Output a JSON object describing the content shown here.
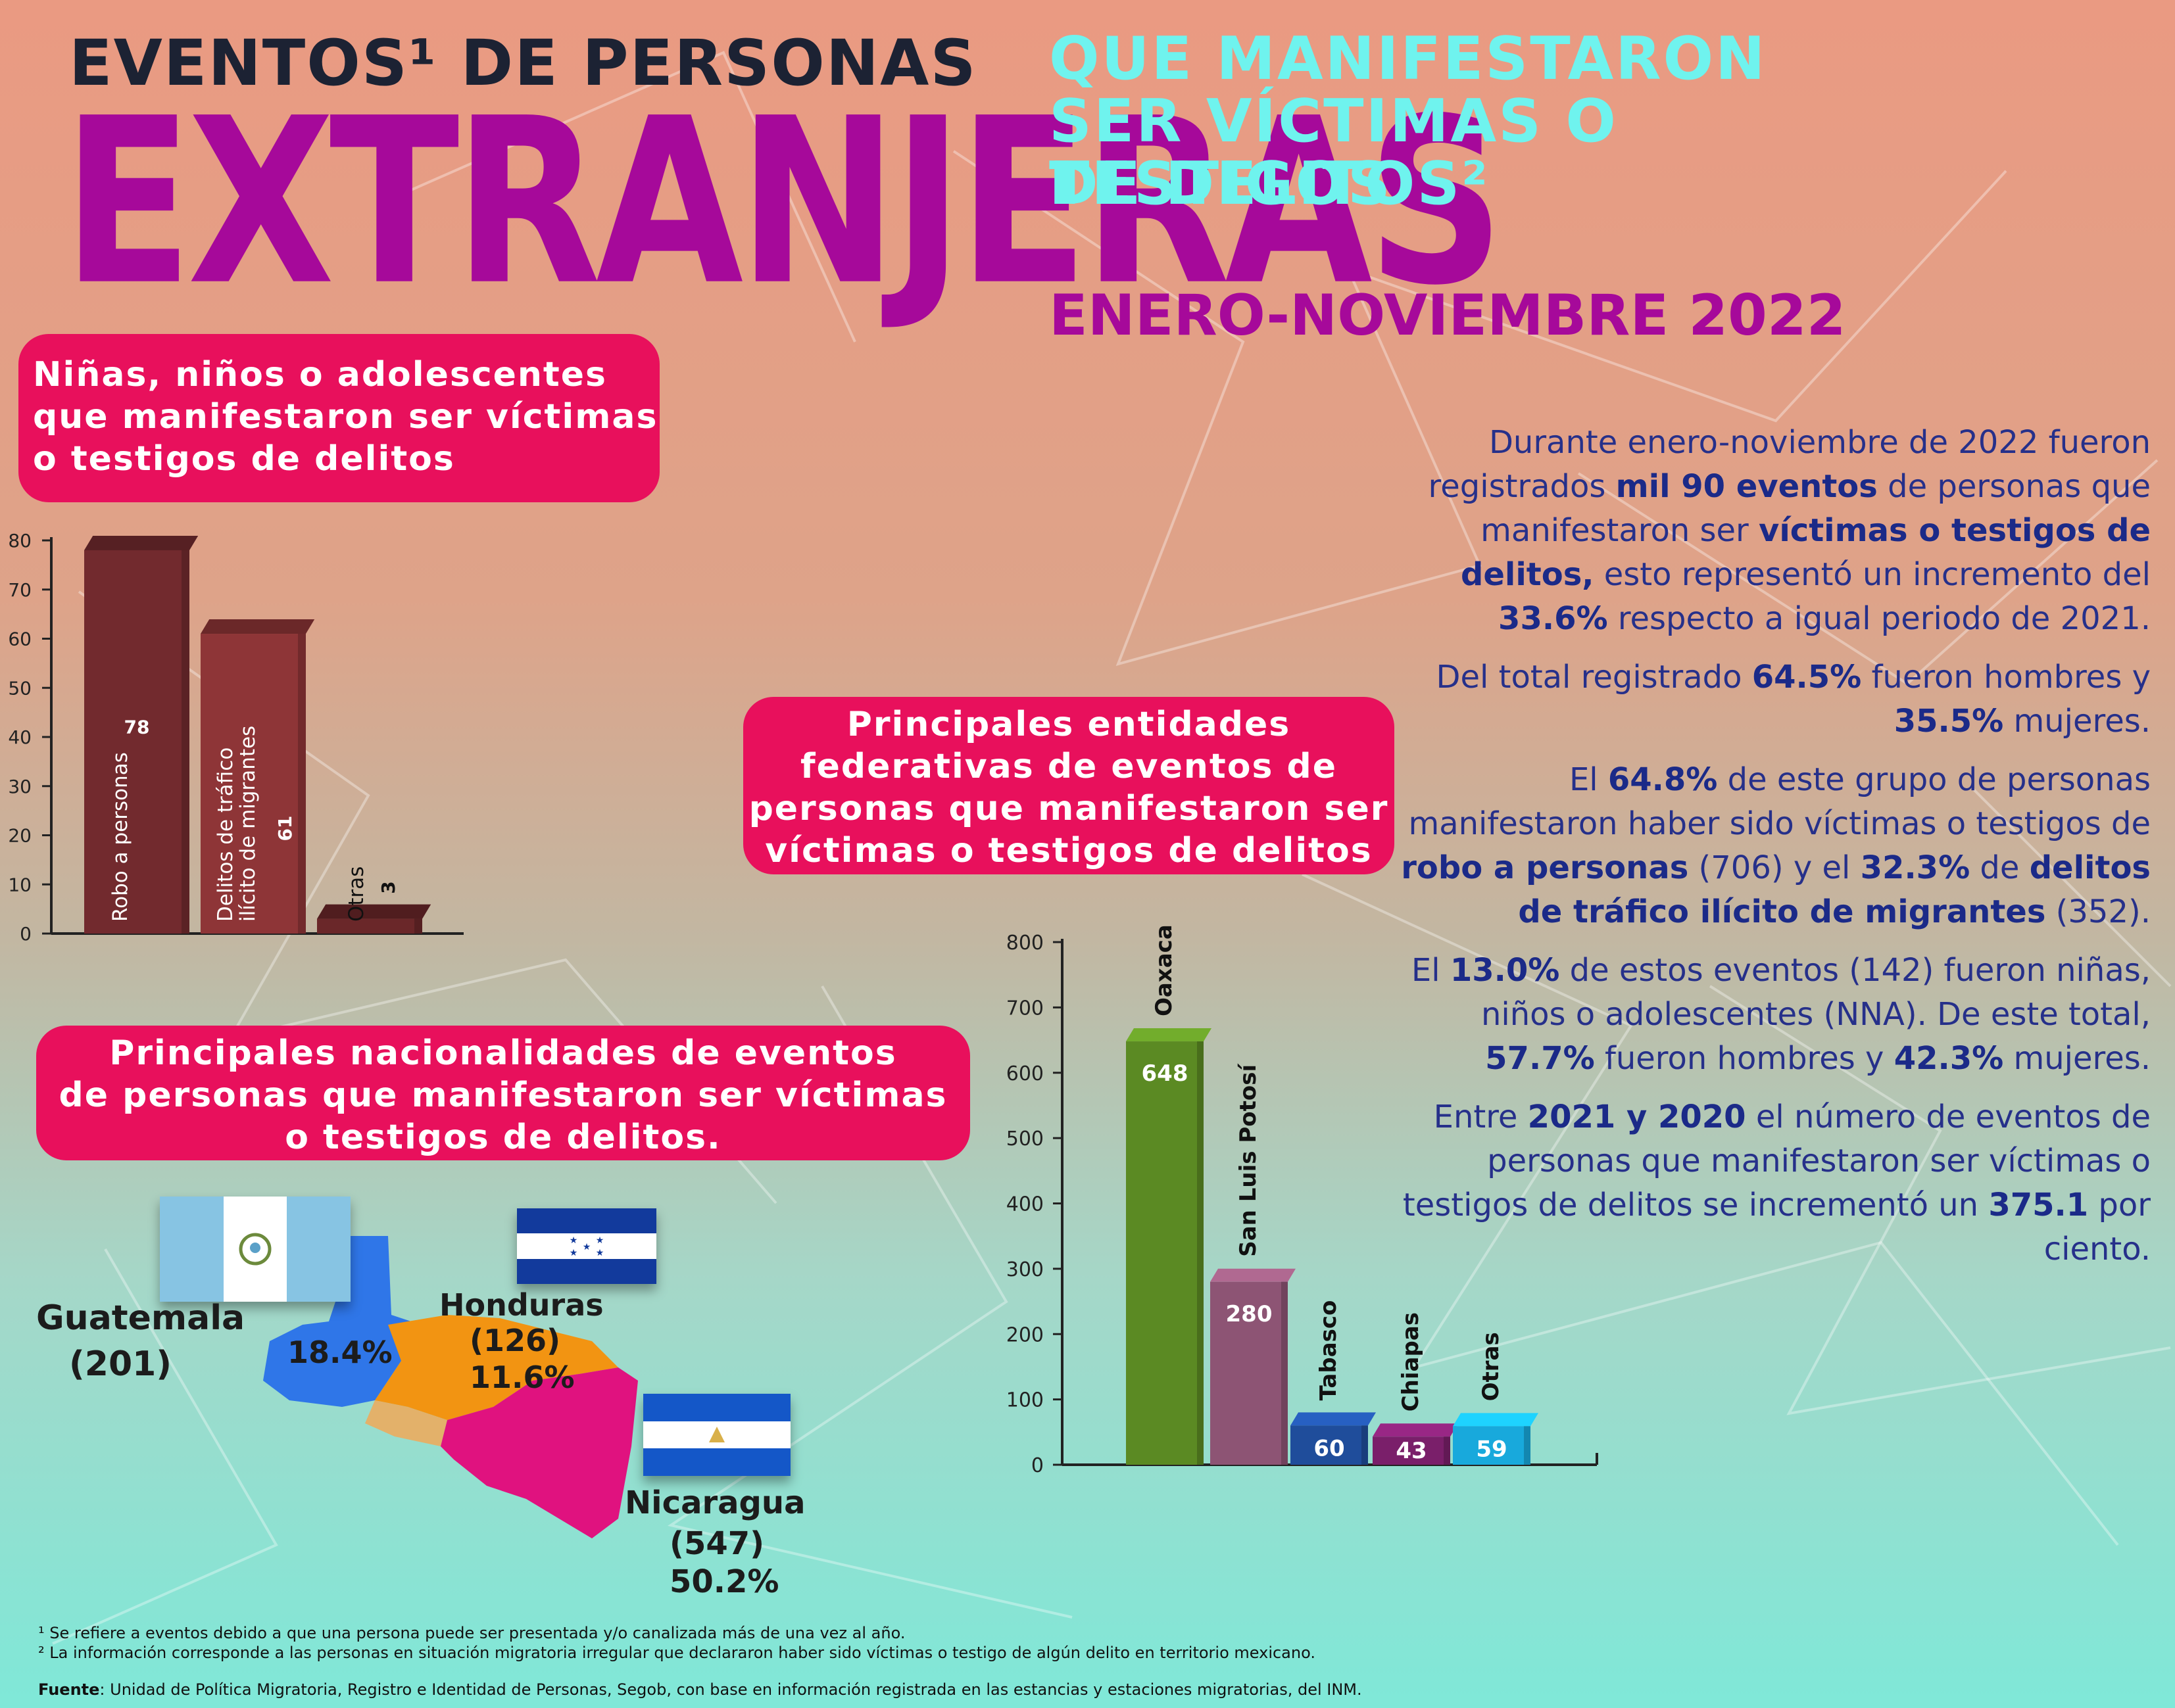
{
  "header": {
    "line1": "EVENTOS¹ DE PERSONAS",
    "big": "EXTRANJERAS",
    "right_line1": "QUE MANIFESTARON",
    "right_line2": "SER VÍCTIMAS O TESTIGOS",
    "right_line3": "DE DELITOS²",
    "date": "ENERO-NOVIEMBRE 2022"
  },
  "nna_box": {
    "line1": "Niñas, niños o adolescentes",
    "line2": "que manifestaron ser víctimas",
    "line3": "o testigos de delitos"
  },
  "entidades_box": {
    "line1": "Principales entidades",
    "line2": "federativas de eventos de",
    "line3": "personas que manifestaron ser",
    "line4": "víctimas o testigos de delitos"
  },
  "nacionalidades_box": {
    "line1": "Principales nacionalidades de eventos",
    "line2": "de personas que manifestaron ser víctimas",
    "line3": "o testigos de delitos."
  },
  "side_text": {
    "p1_a": "Durante enero-noviembre de 2022  fueron registrados ",
    "p1_b": "mil 90 eventos",
    "p1_c": " de personas que manifestaron ser ",
    "p1_d": "víctimas o testigos de delitos,",
    "p1_e": " esto representó un incremento del ",
    "p1_f": "33.6%",
    "p1_g": " respecto a igual periodo de 2021.",
    "p2_a": "Del total registrado ",
    "p2_b": "64.5%",
    "p2_c": " fueron hombres y ",
    "p2_d": "35.5%",
    "p2_e": " mujeres.",
    "p3_a": "El ",
    "p3_b": "64.8%",
    "p3_c": " de este grupo de personas manifestaron haber sido víctimas o testigos de ",
    "p3_d": "robo a personas",
    "p3_e": " (706) y el ",
    "p3_f": "32.3%",
    "p3_g": " de ",
    "p3_h": "delitos de tráfico ilícito de migrantes",
    "p3_i": " (352).",
    "p4_a": "El ",
    "p4_b": "13.0%",
    "p4_c": " de estos eventos (142) fueron niñas, niños o adolescentes (NNA). De este total, ",
    "p4_d": "57.7%",
    "p4_e": " fueron hombres y ",
    "p4_f": "42.3%",
    "p4_g": " mujeres.",
    "p5_a": "Entre ",
    "p5_b": "2021 y 2020",
    "p5_c": " el número de eventos de personas que manifestaron ser víctimas o testigos de delitos se incrementó un ",
    "p5_d": "375.1",
    "p5_e": " por ciento."
  },
  "chart_data": [
    {
      "type": "bar",
      "categories": [
        "Robo a personas",
        "Delitos de tráfico ilícito de migrantes",
        "Otras"
      ],
      "category_lines": [
        [
          "Robo a personas"
        ],
        [
          "Delitos de tráfico",
          "ilícito de migrantes"
        ],
        [
          "Otras"
        ]
      ],
      "values": [
        78,
        61,
        3
      ],
      "value_labels": [
        "78",
        "61",
        "3"
      ],
      "ylim": [
        0,
        80
      ],
      "yticks": [
        0,
        10,
        20,
        30,
        40,
        50,
        60,
        70,
        80
      ],
      "colors": [
        "#722a2e",
        "#8e3537",
        "#6a2729"
      ],
      "grid": false
    },
    {
      "type": "bar",
      "categories": [
        "Oaxaca",
        "San Luis Potosí",
        "Tabasco",
        "Chiapas",
        "Otras"
      ],
      "values": [
        648,
        280,
        60,
        43,
        59
      ],
      "value_labels": [
        "648",
        "280",
        "60",
        "43",
        "59"
      ],
      "ylim": [
        0,
        800
      ],
      "yticks": [
        0,
        100,
        200,
        300,
        400,
        500,
        600,
        700,
        800
      ],
      "colors": [
        "#5b8a23",
        "#8d5474",
        "#1f4d9b",
        "#7a1f6a",
        "#18a9dc"
      ],
      "grid": false
    },
    {
      "type": "map",
      "categories": [
        "Guatemala",
        "Honduras",
        "Nicaragua"
      ],
      "counts": [
        "(201)",
        "(126)",
        "(547)"
      ],
      "percents": [
        "18.4%",
        "11.6%",
        "50.2%"
      ],
      "values": [
        201,
        126,
        547
      ],
      "colors": [
        "#2f76e8",
        "#f29412",
        "#e0127f"
      ]
    }
  ],
  "footnotes": {
    "n1": "¹ Se refiere a eventos debido a que una persona puede ser presentada y/o canalizada más de una vez al año.",
    "n2": "² La información corresponde a las personas en situación migratoria irregular que declararon haber sido víctimas o testigo de algún delito en territorio mexicano.",
    "source_label": "Fuente",
    "source_text": ": Unidad de Política Migratoria, Registro e Identidad de Personas, Segob, con base en información registrada en las estancias y estaciones migratorias, del INM."
  }
}
